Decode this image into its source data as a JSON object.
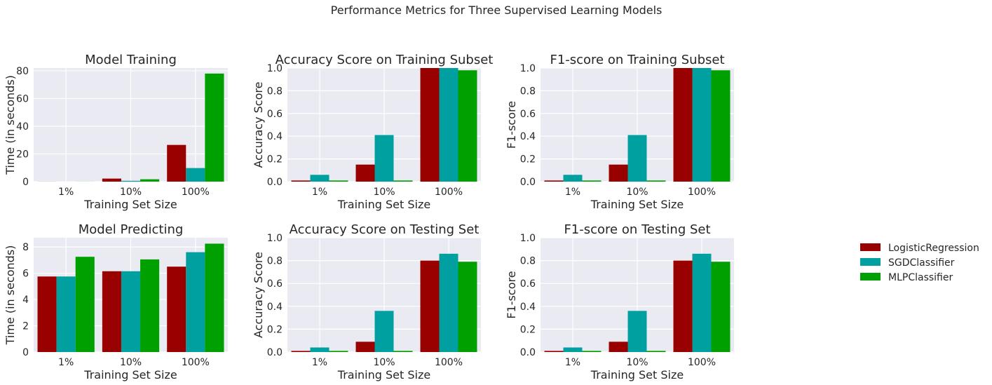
{
  "colors": {
    "LogisticRegression": "#990000",
    "SGDClassifier": "#00A0A0",
    "MLPClassifier": "#00A000",
    "axes_bg": "#EAEAF2",
    "grid": "#FFFFFF"
  },
  "chart_data": {
    "suptitle": "Performance Metrics for Three Supervised Learning Models",
    "legend": {
      "placement": "right",
      "entries": [
        "LogisticRegression",
        "SGDClassifier",
        "MLPClassifier"
      ]
    },
    "panels": [
      {
        "type": "bar",
        "title": "Model Training",
        "xlabel": "Training Set Size",
        "ylabel": "Time (in seconds)",
        "categories": [
          "1%",
          "10%",
          "100%"
        ],
        "ylim": [
          0,
          82
        ],
        "yticks": [
          0,
          20,
          40,
          60,
          80
        ],
        "ytick_labels": [
          "0",
          "20",
          "40",
          "60",
          "80"
        ],
        "grid": true,
        "series": [
          {
            "name": "LogisticRegression",
            "values": [
              0.05,
              2.2,
              26.5
            ]
          },
          {
            "name": "SGDClassifier",
            "values": [
              0.02,
              0.6,
              9.8
            ]
          },
          {
            "name": "MLPClassifier",
            "values": [
              0.05,
              1.7,
              78.0
            ]
          }
        ]
      },
      {
        "type": "bar",
        "title": "Accuracy Score on Training Subset",
        "xlabel": "Training Set Size",
        "ylabel": "Accuracy Score",
        "categories": [
          "1%",
          "10%",
          "100%"
        ],
        "ylim": [
          0,
          1
        ],
        "yticks": [
          0,
          0.2,
          0.4,
          0.6,
          0.8,
          1.0
        ],
        "ytick_labels": [
          "0.0",
          "0.2",
          "0.4",
          "0.6",
          "0.8",
          "1.0"
        ],
        "grid": true,
        "series": [
          {
            "name": "LogisticRegression",
            "values": [
              0.01,
              0.15,
              1.0
            ]
          },
          {
            "name": "SGDClassifier",
            "values": [
              0.06,
              0.41,
              1.0
            ]
          },
          {
            "name": "MLPClassifier",
            "values": [
              0.01,
              0.01,
              0.98
            ]
          }
        ]
      },
      {
        "type": "bar",
        "title": "F1-score on Training Subset",
        "xlabel": "Training Set Size",
        "ylabel": "F1-score",
        "categories": [
          "1%",
          "10%",
          "100%"
        ],
        "ylim": [
          0,
          1
        ],
        "yticks": [
          0,
          0.2,
          0.4,
          0.6,
          0.8,
          1.0
        ],
        "ytick_labels": [
          "0.0",
          "0.2",
          "0.4",
          "0.6",
          "0.8",
          "1.0"
        ],
        "grid": true,
        "series": [
          {
            "name": "LogisticRegression",
            "values": [
              0.01,
              0.15,
              1.0
            ]
          },
          {
            "name": "SGDClassifier",
            "values": [
              0.06,
              0.41,
              1.0
            ]
          },
          {
            "name": "MLPClassifier",
            "values": [
              0.01,
              0.01,
              0.98
            ]
          }
        ]
      },
      {
        "type": "bar",
        "title": "Model Predicting",
        "xlabel": "Training Set Size",
        "ylabel": "Time (in seconds)",
        "categories": [
          "1%",
          "10%",
          "100%"
        ],
        "ylim": [
          0,
          8.7
        ],
        "yticks": [
          0,
          2,
          4,
          6,
          8
        ],
        "ytick_labels": [
          "0",
          "2",
          "4",
          "6",
          "8"
        ],
        "grid": true,
        "series": [
          {
            "name": "LogisticRegression",
            "values": [
              5.75,
              6.15,
              6.5
            ]
          },
          {
            "name": "SGDClassifier",
            "values": [
              5.75,
              6.15,
              7.6
            ]
          },
          {
            "name": "MLPClassifier",
            "values": [
              7.25,
              7.05,
              8.25
            ]
          }
        ]
      },
      {
        "type": "bar",
        "title": "Accuracy Score on Testing Set",
        "xlabel": "Training Set Size",
        "ylabel": "Accuracy Score",
        "categories": [
          "1%",
          "10%",
          "100%"
        ],
        "ylim": [
          0,
          1
        ],
        "yticks": [
          0,
          0.2,
          0.4,
          0.6,
          0.8,
          1.0
        ],
        "ytick_labels": [
          "0.0",
          "0.2",
          "0.4",
          "0.6",
          "0.8",
          "1.0"
        ],
        "grid": true,
        "series": [
          {
            "name": "LogisticRegression",
            "values": [
              0.01,
              0.09,
              0.8
            ]
          },
          {
            "name": "SGDClassifier",
            "values": [
              0.04,
              0.36,
              0.86
            ]
          },
          {
            "name": "MLPClassifier",
            "values": [
              0.01,
              0.01,
              0.79
            ]
          }
        ]
      },
      {
        "type": "bar",
        "title": "F1-score on Testing Set",
        "xlabel": "Training Set Size",
        "ylabel": "F1-score",
        "categories": [
          "1%",
          "10%",
          "100%"
        ],
        "ylim": [
          0,
          1
        ],
        "yticks": [
          0,
          0.2,
          0.4,
          0.6,
          0.8,
          1.0
        ],
        "ytick_labels": [
          "0.0",
          "0.2",
          "0.4",
          "0.6",
          "0.8",
          "1.0"
        ],
        "grid": true,
        "series": [
          {
            "name": "LogisticRegression",
            "values": [
              0.01,
              0.09,
              0.8
            ]
          },
          {
            "name": "SGDClassifier",
            "values": [
              0.04,
              0.36,
              0.86
            ]
          },
          {
            "name": "MLPClassifier",
            "values": [
              0.01,
              0.01,
              0.79
            ]
          }
        ]
      }
    ]
  }
}
